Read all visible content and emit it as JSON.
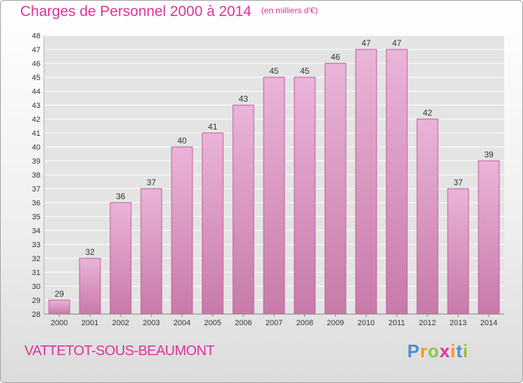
{
  "title": "Charges de Personnel 2000 à 2014",
  "subtitle": "(en milliers d'€)",
  "commune": "VATTETOT-SOUS-BEAUMONT",
  "logo": {
    "letters": [
      "P",
      "r",
      "o",
      "x",
      "i",
      "t",
      "i"
    ],
    "colors": [
      "#4a8fd8",
      "#f29a1a",
      "#8cc63e",
      "#e0329a",
      "#f29a1a",
      "#4a8fd8",
      "#8cc63e"
    ]
  },
  "colors": {
    "title": "#e0329a",
    "bar_top": "#eab4d8",
    "bar_bottom": "#c77aa8",
    "bar_edge": "#c05c9a",
    "grid": "#ffffff",
    "axis": "#808080"
  },
  "chart_data": {
    "type": "bar",
    "title": "Charges de Personnel 2000 à 2014",
    "subtitle": "(en milliers d'€)",
    "categories": [
      "2000",
      "2001",
      "2002",
      "2003",
      "2004",
      "2005",
      "2006",
      "2007",
      "2008",
      "2009",
      "2010",
      "2011",
      "2012",
      "2013",
      "2014"
    ],
    "values": [
      29,
      32,
      36,
      37,
      40,
      41,
      43,
      45,
      45,
      46,
      47,
      47,
      42,
      37,
      39
    ],
    "ylim": [
      28,
      48
    ],
    "yticks": [
      28,
      29,
      30,
      31,
      32,
      33,
      34,
      35,
      36,
      37,
      38,
      39,
      40,
      41,
      42,
      43,
      44,
      45,
      46,
      47,
      48
    ],
    "grid": true
  }
}
